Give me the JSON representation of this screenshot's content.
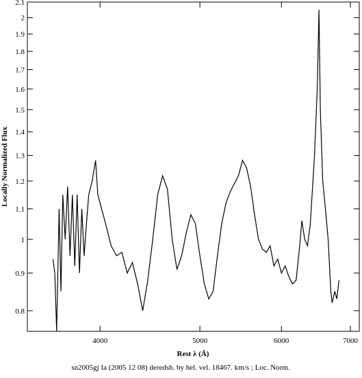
{
  "chart_data": {
    "type": "line",
    "xlabel": "Rest λ (Å)",
    "ylabel": "Locally Normalized Flux",
    "caption": "sn2005gj Ia (2005 12 08) deredsh. by hel. vel. 18467. km/s ;  Loc. Norm.",
    "xscale": "log",
    "yscale": "log",
    "xlim": [
      3400,
      7140
    ],
    "ylim": [
      0.75,
      2.1
    ],
    "xticks": [
      4000,
      5000,
      6000,
      7000
    ],
    "yticks": [
      0.8,
      0.9,
      1,
      1.1,
      1.2,
      1.3,
      1.4,
      1.5,
      1.6,
      1.7,
      1.8,
      1.9,
      2,
      2.1
    ],
    "series": [
      {
        "color": "#000000",
        "x": [
          3600,
          3615,
          3630,
          3650,
          3665,
          3680,
          3700,
          3720,
          3740,
          3760,
          3780,
          3800,
          3820,
          3840,
          3860,
          3880,
          3900,
          3930,
          3960,
          3980,
          4000,
          4050,
          4100,
          4150,
          4200,
          4250,
          4300,
          4350,
          4400,
          4450,
          4500,
          4550,
          4600,
          4650,
          4700,
          4750,
          4800,
          4850,
          4900,
          4950,
          5000,
          5050,
          5100,
          5150,
          5200,
          5250,
          5300,
          5350,
          5400,
          5450,
          5500,
          5550,
          5600,
          5650,
          5700,
          5750,
          5800,
          5850,
          5900,
          5950,
          6000,
          6050,
          6100,
          6150,
          6200,
          6250,
          6280,
          6320,
          6360,
          6400,
          6460,
          6500,
          6525,
          6545,
          6580,
          6620,
          6660,
          6700,
          6720,
          6760,
          6790,
          6824
        ],
        "values": [
          0.94,
          0.9,
          0.75,
          1.1,
          0.85,
          1.15,
          1.0,
          1.18,
          0.95,
          1.15,
          0.92,
          1.15,
          0.9,
          1.1,
          0.95,
          1.05,
          1.15,
          1.2,
          1.28,
          1.15,
          1.12,
          1.05,
          0.98,
          0.95,
          0.96,
          0.9,
          0.93,
          0.87,
          0.8,
          0.88,
          1.0,
          1.15,
          1.22,
          1.17,
          1.0,
          0.91,
          0.95,
          1.02,
          1.08,
          1.05,
          0.95,
          0.87,
          0.83,
          0.85,
          0.95,
          1.05,
          1.12,
          1.16,
          1.19,
          1.22,
          1.28,
          1.25,
          1.18,
          1.08,
          1.0,
          0.97,
          0.96,
          0.98,
          0.92,
          0.94,
          0.9,
          0.92,
          0.89,
          0.87,
          0.88,
          0.98,
          1.06,
          1.0,
          0.98,
          1.05,
          1.3,
          1.6,
          2.05,
          1.5,
          1.2,
          1.1,
          1.0,
          0.85,
          0.82,
          0.85,
          0.83,
          0.88
        ]
      }
    ]
  }
}
